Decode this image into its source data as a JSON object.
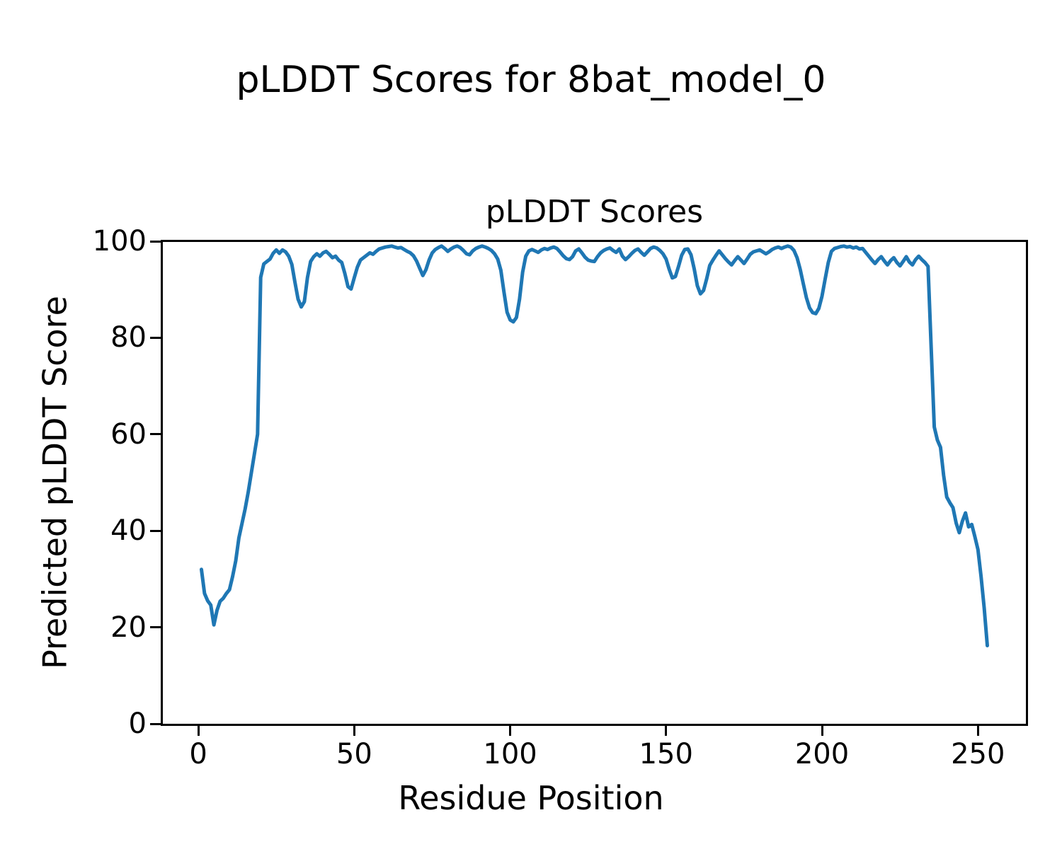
{
  "figure": {
    "suptitle": "pLDDT Scores for 8bat_model_0",
    "background_color": "#ffffff",
    "text_color": "#000000",
    "spine_color": "#000000"
  },
  "chart_data": {
    "type": "line",
    "title": "pLDDT Scores",
    "xlabel": "Residue Position",
    "ylabel": "Predicted pLDDT Score",
    "xlim": [
      -11.6,
      265.6
    ],
    "ylim": [
      0,
      100
    ],
    "xticks": [
      0,
      50,
      100,
      150,
      200,
      250
    ],
    "yticks": [
      0,
      20,
      40,
      60,
      80,
      100
    ],
    "grid": false,
    "legend": "none",
    "line_color": "#1f77b4",
    "line_width": 5,
    "series": [
      {
        "x_start": 1,
        "values": [
          32.0,
          27.0,
          25.5,
          24.6,
          20.5,
          23.5,
          25.4,
          26.0,
          27.0,
          27.8,
          30.5,
          33.8,
          38.5,
          41.5,
          44.5,
          48.0,
          52.0,
          56.0,
          60.0,
          92.5,
          95.3,
          95.8,
          96.3,
          97.5,
          98.2,
          97.5,
          98.2,
          97.8,
          96.9,
          95.2,
          91.5,
          88.0,
          86.4,
          87.5,
          92.5,
          95.8,
          96.8,
          97.4,
          96.9,
          97.6,
          97.9,
          97.3,
          96.6,
          96.9,
          96.1,
          95.6,
          93.3,
          90.6,
          90.1,
          92.4,
          94.6,
          96.1,
          96.6,
          97.1,
          97.6,
          97.3,
          97.9,
          98.4,
          98.6,
          98.8,
          98.9,
          99.0,
          98.8,
          98.6,
          98.7,
          98.3,
          97.9,
          97.6,
          97.0,
          95.9,
          94.4,
          92.9,
          94.1,
          96.1,
          97.6,
          98.3,
          98.7,
          99.0,
          98.5,
          97.9,
          98.4,
          98.8,
          99.0,
          98.7,
          98.1,
          97.4,
          97.2,
          98.0,
          98.5,
          98.8,
          99.0,
          98.8,
          98.5,
          98.1,
          97.4,
          96.3,
          94.0,
          89.5,
          85.3,
          83.7,
          83.3,
          84.2,
          88.0,
          93.6,
          96.9,
          98.0,
          98.3,
          98.0,
          97.7,
          98.2,
          98.5,
          98.3,
          98.6,
          98.8,
          98.5,
          97.8,
          97.0,
          96.4,
          96.2,
          96.8,
          98.0,
          98.4,
          97.6,
          96.7,
          96.1,
          95.9,
          95.8,
          96.8,
          97.6,
          98.1,
          98.4,
          98.6,
          98.1,
          97.7,
          98.4,
          96.9,
          96.2,
          96.8,
          97.5,
          98.1,
          98.4,
          97.7,
          97.1,
          97.8,
          98.5,
          98.8,
          98.6,
          98.1,
          97.4,
          96.3,
          94.2,
          92.4,
          92.7,
          94.8,
          97.1,
          98.3,
          98.4,
          97.2,
          94.3,
          90.8,
          89.1,
          89.8,
          92.2,
          95.0,
          96.1,
          97.1,
          98.0,
          97.2,
          96.4,
          95.7,
          95.1,
          96.0,
          96.8,
          96.1,
          95.4,
          96.3,
          97.3,
          97.8,
          98.0,
          98.2,
          97.8,
          97.4,
          97.8,
          98.3,
          98.6,
          98.8,
          98.5,
          98.8,
          99.0,
          98.8,
          98.1,
          96.6,
          94.2,
          91.2,
          88.3,
          86.2,
          85.2,
          85.0,
          86.1,
          88.6,
          92.2,
          95.6,
          97.9,
          98.5,
          98.7,
          98.9,
          99.0,
          98.8,
          98.9,
          98.6,
          98.8,
          98.4,
          98.5,
          97.7,
          96.9,
          96.1,
          95.4,
          96.2,
          96.8,
          95.9,
          95.1,
          96.0,
          96.6,
          95.6,
          94.9,
          95.8,
          96.8,
          95.7,
          95.1,
          96.2,
          96.9,
          96.2,
          95.6,
          94.8,
          78.0,
          61.5,
          58.8,
          57.3,
          51.5,
          47.0,
          45.8,
          44.8,
          41.6,
          39.6,
          42.0,
          43.7,
          40.8,
          41.3,
          38.8,
          36.1,
          30.5,
          24.0,
          16.2
        ]
      }
    ]
  }
}
